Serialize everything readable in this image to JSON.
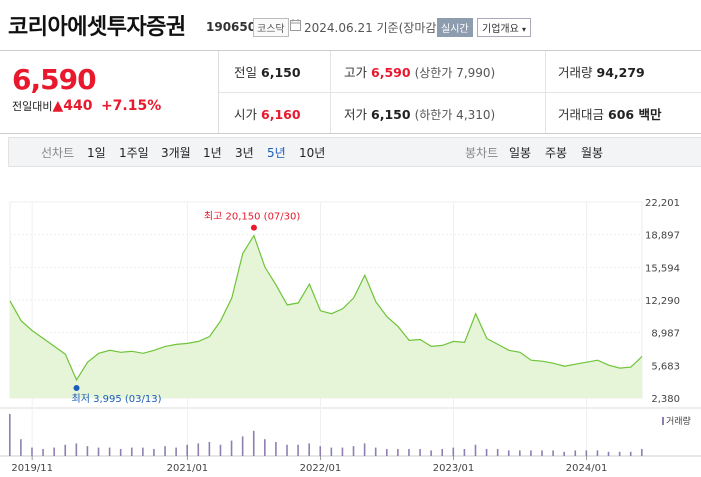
{
  "stock": {
    "name": "코리아에셋투자증권",
    "code": "190650",
    "market": "코스닥",
    "date_text": "2024.06.21 기준(장마감)",
    "realtime_label": "실시간",
    "company_label": "기업개요"
  },
  "quote": {
    "price": "6,590",
    "change_label": "전일대비",
    "change_arrow": "▲",
    "change_value": "440",
    "change_pct": "+7.15%",
    "prev_close_label": "전일",
    "prev_close": "6,150",
    "high_label": "고가",
    "high": "6,590",
    "upper_limit": "(상한가 7,990)",
    "volume_label": "거래량",
    "volume": "94,279",
    "open_label": "시가",
    "open": "6,160",
    "low_label": "저가",
    "low": "6,150",
    "lower_limit": "(하한가 4,310)",
    "amount_label": "거래대금",
    "amount": "606 백만"
  },
  "tabs": {
    "line_label": "선차트",
    "line": [
      "1일",
      "1주일",
      "3개월",
      "1년",
      "3년",
      "5년",
      "10년"
    ],
    "active": "5년",
    "candle_label": "봉차트",
    "candle": [
      "일봉",
      "주봉",
      "월봉"
    ]
  },
  "colors": {
    "up": "#e8192c",
    "line": "#6fc43a",
    "fill": "#e6f5d8",
    "active_tab": "#1b5eb8",
    "low_marker": "#1b5eb8"
  },
  "chart_data": {
    "type": "area",
    "x_range": [
      "2019-09",
      "2024-06"
    ],
    "ylim": [
      2380,
      22201
    ],
    "yticks": [
      "22,201",
      "18,897",
      "15,594",
      "12,290",
      "8,987",
      "5,683",
      "2,380"
    ],
    "xticks": [
      "2019/11",
      "2021/01",
      "2022/01",
      "2023/01",
      "2024/01"
    ],
    "grid": true,
    "max_annotation": "최고 20,150 (07/30)",
    "min_annotation": "최저 3,995 (03/13)",
    "volume_legend": "거래량",
    "series": [
      {
        "x": [
          "2019-09",
          "2019-10",
          "2019-11",
          "2019-12",
          "2020-01",
          "2020-02",
          "2020-03",
          "2020-04",
          "2020-05",
          "2020-06",
          "2020-07",
          "2020-08",
          "2020-09",
          "2020-10",
          "2020-11",
          "2020-12",
          "2021-01",
          "2021-02",
          "2021-03",
          "2021-04",
          "2021-05",
          "2021-06",
          "2021-07",
          "2021-08",
          "2021-09",
          "2021-10",
          "2021-11",
          "2021-12",
          "2022-01",
          "2022-02",
          "2022-03",
          "2022-04",
          "2022-05",
          "2022-06",
          "2022-07",
          "2022-08",
          "2022-09",
          "2022-10",
          "2022-11",
          "2022-12",
          "2023-01",
          "2023-02",
          "2023-03",
          "2023-04",
          "2023-05",
          "2023-06",
          "2023-07",
          "2023-08",
          "2023-09",
          "2023-10",
          "2023-11",
          "2023-12",
          "2024-01",
          "2024-02",
          "2024-03",
          "2024-04",
          "2024-05",
          "2024-06"
        ],
        "values": [
          12200,
          10200,
          9200,
          8400,
          7600,
          6800,
          4200,
          6000,
          6900,
          7200,
          7000,
          7100,
          6900,
          7200,
          7600,
          7800,
          7900,
          8100,
          8600,
          10200,
          12500,
          17000,
          18800,
          15600,
          13800,
          11800,
          12000,
          13900,
          11200,
          10900,
          11400,
          12500,
          14800,
          12100,
          10600,
          9600,
          8200,
          8300,
          7600,
          7700,
          8100,
          8000,
          10900,
          8400,
          7800,
          7200,
          7000,
          6200,
          6100,
          5900,
          5600,
          5800,
          6000,
          6200,
          5700,
          5400,
          5500,
          6590
        ]
      }
    ],
    "volume": [
      30,
      12,
      6,
      5,
      6,
      8,
      9,
      7,
      6,
      6,
      5,
      6,
      6,
      5,
      7,
      6,
      8,
      9,
      10,
      8,
      11,
      14,
      18,
      12,
      10,
      8,
      8,
      9,
      7,
      6,
      6,
      7,
      9,
      6,
      5,
      5,
      5,
      5,
      4,
      5,
      6,
      5,
      8,
      5,
      5,
      4,
      4,
      4,
      4,
      4,
      3,
      4,
      4,
      4,
      3,
      3,
      3,
      5
    ]
  }
}
